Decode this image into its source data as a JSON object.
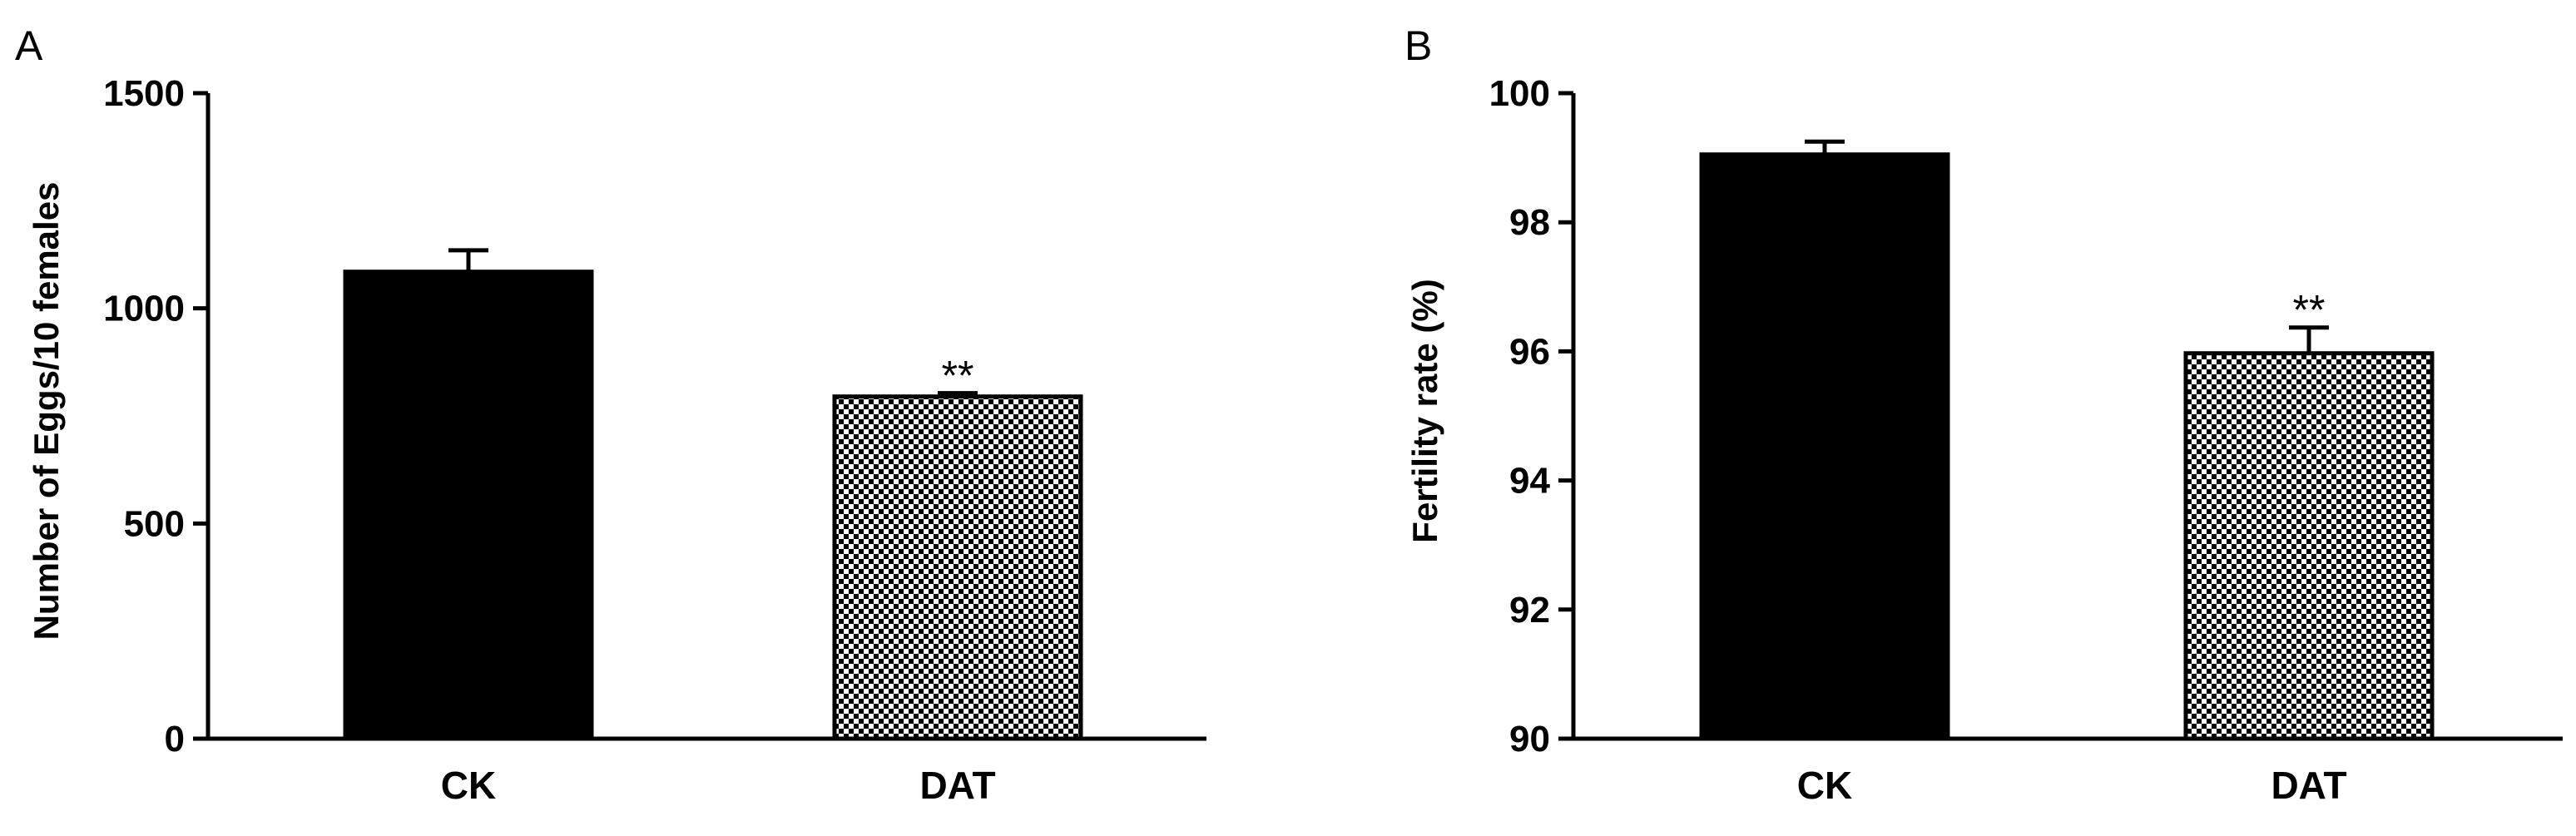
{
  "chart_data": [
    {
      "panel": "A",
      "type": "bar",
      "categories": [
        "CK",
        "DAT"
      ],
      "values": [
        1085,
        795
      ],
      "errors": [
        50,
        8
      ],
      "significance": [
        "",
        "**"
      ],
      "ylabel": "Number of Eggs/10 females",
      "xlabel": "",
      "ylim": [
        0,
        1500
      ],
      "yticks": [
        0,
        500,
        1000,
        1500
      ],
      "ytick_labels": [
        "0",
        "500",
        "1000",
        "1500"
      ],
      "grid": false,
      "bar_fills": [
        "solid",
        "checker"
      ],
      "colors": {
        "bar": "#000000",
        "checker_light": "#ffffff"
      }
    },
    {
      "panel": "B",
      "type": "bar",
      "categories": [
        "CK",
        "DAT"
      ],
      "values": [
        99.05,
        95.97
      ],
      "errors": [
        0.2,
        0.4
      ],
      "significance": [
        "",
        "**"
      ],
      "ylabel": "Fertility rate (%)",
      "xlabel": "",
      "ylim": [
        90,
        100
      ],
      "yticks": [
        90,
        92,
        94,
        96,
        98,
        100
      ],
      "ytick_labels": [
        "90",
        "92",
        "94",
        "96",
        "98",
        "100"
      ],
      "grid": false,
      "bar_fills": [
        "solid",
        "checker"
      ],
      "colors": {
        "bar": "#000000",
        "checker_light": "#ffffff"
      }
    }
  ]
}
